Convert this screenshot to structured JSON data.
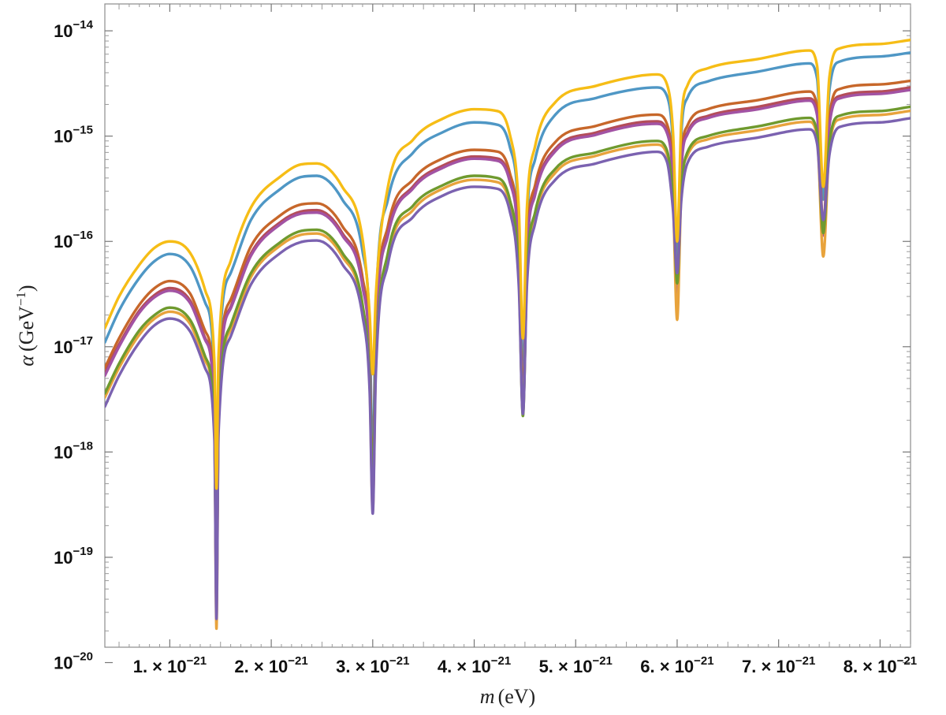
{
  "chart_data": {
    "type": "line",
    "title": "",
    "xlabel": {
      "symbol": "m",
      "unit": "(eV)"
    },
    "ylabel": {
      "symbol": "α",
      "unit_prefix": "(GeV",
      "unit_exp": "−1",
      "unit_suffix": ")"
    },
    "x_scale": "linear",
    "y_scale": "log",
    "xlim": [
      3.6e-22,
      8.3e-21
    ],
    "ylim": [
      1.4e-20,
      1.8e-14
    ],
    "grid": false,
    "legend": "none",
    "x_ticks": [
      {
        "value": 1e-21,
        "mant": "1.",
        "exp": "−21"
      },
      {
        "value": 2e-21,
        "mant": "2.",
        "exp": "−21"
      },
      {
        "value": 3e-21,
        "mant": "3.",
        "exp": "−21"
      },
      {
        "value": 4e-21,
        "mant": "4.",
        "exp": "−21"
      },
      {
        "value": 5e-21,
        "mant": "5.",
        "exp": "−21"
      },
      {
        "value": 6e-21,
        "mant": "6.",
        "exp": "−21"
      },
      {
        "value": 7e-21,
        "mant": "7.",
        "exp": "−21"
      },
      {
        "value": 8e-21,
        "mant": "8.",
        "exp": "−21"
      }
    ],
    "y_ticks": [
      {
        "value": 1e-14,
        "exp": "−14"
      },
      {
        "value": 1e-15,
        "exp": "−15"
      },
      {
        "value": 1e-16,
        "exp": "−16"
      },
      {
        "value": 1e-17,
        "exp": "−17"
      },
      {
        "value": 1e-18,
        "exp": "−18"
      },
      {
        "value": 1e-19,
        "exp": "−19"
      },
      {
        "value": 1e-20,
        "exp": "−20"
      }
    ],
    "series": [
      {
        "color": "#4f97c5",
        "x": [
          3.6e-22,
          5e-22,
          7e-22,
          8.5e-22,
          1e-21,
          1.2e-21,
          1.35e-21,
          1.44e-21,
          1.46e-21,
          1.48e-21,
          1.6e-21,
          1.8e-21,
          2.1e-21,
          2.3e-21,
          2.45e-21,
          2.7e-21,
          2.9e-21,
          2.97e-21,
          3e-21,
          3.03e-21,
          3.15e-21,
          3.4e-21,
          3.7e-21,
          4e-21,
          4.2e-21,
          4.35e-21,
          4.44e-21,
          4.48e-21,
          4.52e-21,
          4.6e-21,
          4.8e-21,
          5.2e-21,
          5.6e-21,
          5.8e-21,
          5.9e-21,
          5.96e-21,
          6e-21,
          6.04e-21,
          6.1e-21,
          6.3e-21,
          6.8e-21,
          7.3e-21,
          7.38e-21,
          7.44e-21,
          7.5e-21,
          7.6e-21,
          8e-21,
          8.3e-21
        ],
        "y": [
          1.1e-17,
          2.2e-17,
          4.5e-17,
          6.5e-17,
          7.6e-17,
          5.8e-17,
          2.6e-17,
          5e-18,
          8e-20,
          6e-18,
          5e-17,
          1.6e-16,
          3.2e-16,
          4.1e-16,
          4.2e-16,
          2.5e-16,
          8e-17,
          1.5e-17,
          7e-19,
          2.2e-17,
          2.5e-16,
          7e-16,
          1.1e-15,
          1.35e-15,
          1.3e-15,
          8e-16,
          1.5e-16,
          5e-18,
          1.6e-16,
          6e-16,
          1.6e-15,
          2.3e-15,
          2.8e-15,
          2.9e-15,
          2.4e-15,
          8e-16,
          6e-17,
          1e-15,
          2.3e-15,
          3.3e-15,
          4.1e-15,
          4.9e-15,
          3.5e-15,
          2.5e-16,
          2.7e-15,
          5.1e-15,
          5.7e-15,
          6.2e-15
        ]
      },
      {
        "color": "#c7672a",
        "x": [
          3.6e-22,
          5e-22,
          7e-22,
          8.5e-22,
          1e-21,
          1.2e-21,
          1.35e-21,
          1.44e-21,
          1.46e-21,
          1.48e-21,
          1.6e-21,
          1.8e-21,
          2.1e-21,
          2.3e-21,
          2.45e-21,
          2.7e-21,
          2.9e-21,
          2.97e-21,
          3e-21,
          3.03e-21,
          3.15e-21,
          3.4e-21,
          3.7e-21,
          4e-21,
          4.2e-21,
          4.35e-21,
          4.44e-21,
          4.48e-21,
          4.52e-21,
          4.6e-21,
          4.8e-21,
          5.2e-21,
          5.6e-21,
          5.8e-21,
          5.9e-21,
          5.96e-21,
          6e-21,
          6.04e-21,
          6.1e-21,
          6.3e-21,
          6.8e-21,
          7.3e-21,
          7.38e-21,
          7.44e-21,
          7.5e-21,
          7.6e-21,
          8e-21,
          8.3e-21
        ],
        "y": [
          6.3e-18,
          1.2e-17,
          2.5e-17,
          3.6e-17,
          4.2e-17,
          3.2e-17,
          1.4e-17,
          3e-18,
          4e-20,
          3.4e-18,
          2.8e-17,
          9e-17,
          1.8e-16,
          2.25e-16,
          2.3e-16,
          1.4e-16,
          4.5e-17,
          8.5e-18,
          4e-19,
          1.2e-17,
          1.4e-16,
          3.9e-16,
          6.2e-16,
          7.4e-16,
          7.2e-16,
          4.5e-16,
          8.5e-17,
          3e-18,
          9e-17,
          3.4e-16,
          8.8e-16,
          1.25e-15,
          1.55e-15,
          1.6e-15,
          1.3e-15,
          4.5e-16,
          3.5e-17,
          5.5e-16,
          1.25e-15,
          1.8e-15,
          2.2e-15,
          2.65e-15,
          1.9e-15,
          1.4e-16,
          1.5e-15,
          2.8e-15,
          3.1e-15,
          3.35e-15
        ]
      },
      {
        "color": "#b44d59",
        "x": [
          3.6e-22,
          5e-22,
          7e-22,
          8.5e-22,
          1e-21,
          1.2e-21,
          1.35e-21,
          1.44e-21,
          1.46e-21,
          1.48e-21,
          1.6e-21,
          1.8e-21,
          2.1e-21,
          2.3e-21,
          2.45e-21,
          2.7e-21,
          2.9e-21,
          2.97e-21,
          3e-21,
          3.03e-21,
          3.15e-21,
          3.4e-21,
          3.7e-21,
          4e-21,
          4.2e-21,
          4.35e-21,
          4.44e-21,
          4.48e-21,
          4.52e-21,
          4.6e-21,
          4.8e-21,
          5.2e-21,
          5.6e-21,
          5.8e-21,
          5.9e-21,
          5.96e-21,
          6e-21,
          6.04e-21,
          6.1e-21,
          6.3e-21,
          6.8e-21,
          7.3e-21,
          7.38e-21,
          7.44e-21,
          7.5e-21,
          7.6e-21,
          8e-21,
          8.3e-21
        ],
        "y": [
          5.6e-18,
          1.05e-17,
          2.2e-17,
          3.1e-17,
          3.6e-17,
          2.75e-17,
          1.2e-17,
          2.6e-18,
          3.5e-20,
          2.9e-18,
          2.4e-17,
          7.7e-17,
          1.55e-16,
          1.93e-16,
          1.98e-16,
          1.2e-16,
          3.9e-17,
          7.3e-18,
          3.4e-19,
          1.05e-17,
          1.2e-16,
          3.35e-16,
          5.3e-16,
          6.4e-16,
          6.2e-16,
          3.9e-16,
          7.3e-17,
          2.6e-18,
          7.7e-17,
          2.9e-16,
          7.6e-16,
          1.08e-15,
          1.34e-15,
          1.38e-15,
          1.12e-15,
          3.9e-16,
          3e-17,
          4.7e-16,
          1.08e-15,
          1.55e-15,
          1.9e-15,
          2.28e-15,
          1.64e-15,
          1.2e-16,
          1.3e-15,
          2.4e-15,
          2.65e-15,
          2.9e-15
        ]
      },
      {
        "color": "#a253a4",
        "x": [
          3.6e-22,
          5e-22,
          7e-22,
          8.5e-22,
          1e-21,
          1.2e-21,
          1.35e-21,
          1.44e-21,
          1.46e-21,
          1.48e-21,
          1.6e-21,
          1.8e-21,
          2.1e-21,
          2.3e-21,
          2.45e-21,
          2.7e-21,
          2.9e-21,
          2.97e-21,
          3e-21,
          3.03e-21,
          3.15e-21,
          3.4e-21,
          3.7e-21,
          4e-21,
          4.2e-21,
          4.35e-21,
          4.44e-21,
          4.48e-21,
          4.52e-21,
          4.6e-21,
          4.8e-21,
          5.2e-21,
          5.6e-21,
          5.8e-21,
          5.9e-21,
          5.96e-21,
          6e-21,
          6.04e-21,
          6.1e-21,
          6.3e-21,
          6.8e-21,
          7.3e-21,
          7.38e-21,
          7.44e-21,
          7.5e-21,
          7.6e-21,
          8e-21,
          8.3e-21
        ],
        "y": [
          5.3e-18,
          1e-17,
          2.1e-17,
          2.95e-17,
          3.4e-17,
          2.6e-17,
          1.15e-17,
          2.5e-18,
          3.3e-20,
          2.8e-18,
          2.3e-17,
          7.3e-17,
          1.48e-16,
          1.84e-16,
          1.88e-16,
          1.14e-16,
          3.7e-17,
          7e-18,
          3.2e-19,
          1e-17,
          1.14e-16,
          3.2e-16,
          5.05e-16,
          6.1e-16,
          5.9e-16,
          3.7e-16,
          7e-17,
          2.5e-18,
          7.3e-17,
          2.75e-16,
          7.2e-16,
          1.03e-15,
          1.27e-15,
          1.31e-15,
          1.07e-15,
          3.7e-16,
          2.8e-17,
          4.5e-16,
          1.03e-15,
          1.48e-15,
          1.8e-15,
          2.17e-15,
          1.56e-15,
          1.14e-16,
          1.24e-15,
          2.28e-15,
          2.52e-15,
          2.75e-15
        ]
      },
      {
        "color": "#e8a33c",
        "x": [
          3.6e-22,
          5e-22,
          7e-22,
          8.5e-22,
          1e-21,
          1.2e-21,
          1.35e-21,
          1.44e-21,
          1.46e-21,
          1.48e-21,
          1.6e-21,
          1.8e-21,
          2.1e-21,
          2.3e-21,
          2.45e-21,
          2.7e-21,
          2.9e-21,
          2.97e-21,
          3e-21,
          3.03e-21,
          3.15e-21,
          3.4e-21,
          3.7e-21,
          4e-21,
          4.2e-21,
          4.35e-21,
          4.44e-21,
          4.48e-21,
          4.52e-21,
          4.6e-21,
          4.8e-21,
          5.2e-21,
          5.6e-21,
          5.8e-21,
          5.9e-21,
          5.96e-21,
          6e-21,
          6.04e-21,
          6.1e-21,
          6.3e-21,
          6.8e-21,
          7.3e-21,
          7.38e-21,
          7.44e-21,
          7.5e-21,
          7.6e-21,
          8e-21,
          8.3e-21
        ],
        "y": [
          3.3e-18,
          6.3e-18,
          1.3e-17,
          1.85e-17,
          2.15e-17,
          1.65e-17,
          7.3e-18,
          1.6e-18,
          2.1e-20,
          1.75e-18,
          1.45e-17,
          4.6e-17,
          9.3e-17,
          1.16e-16,
          1.19e-16,
          7.2e-17,
          2.3e-17,
          4.4e-18,
          2.8e-19,
          6.3e-18,
          7.2e-17,
          2e-16,
          3.2e-16,
          3.85e-16,
          3.7e-16,
          2.3e-16,
          4.4e-17,
          2.4e-18,
          4.6e-17,
          1.73e-16,
          4.5e-16,
          6.5e-16,
          8e-16,
          8.3e-16,
          6.7e-16,
          2.3e-16,
          1.8e-17,
          2.8e-16,
          6.5e-16,
          9.3e-16,
          1.14e-15,
          1.37e-15,
          9.8e-16,
          7.2e-17,
          7.8e-16,
          1.44e-15,
          1.59e-15,
          1.74e-15
        ]
      },
      {
        "color": "#6f9a2e",
        "x": [
          3.6e-22,
          5e-22,
          7e-22,
          8.5e-22,
          1e-21,
          1.2e-21,
          1.35e-21,
          1.44e-21,
          1.46e-21,
          1.48e-21,
          1.6e-21,
          1.8e-21,
          2.1e-21,
          2.3e-21,
          2.45e-21,
          2.7e-21,
          2.9e-21,
          2.97e-21,
          3e-21,
          3.03e-21,
          3.15e-21,
          3.4e-21,
          3.7e-21,
          4e-21,
          4.2e-21,
          4.35e-21,
          4.44e-21,
          4.48e-21,
          4.52e-21,
          4.6e-21,
          4.8e-21,
          5.2e-21,
          5.6e-21,
          5.8e-21,
          5.9e-21,
          5.96e-21,
          6e-21,
          6.04e-21,
          6.1e-21,
          6.3e-21,
          6.8e-21,
          7.3e-21,
          7.38e-21,
          7.44e-21,
          7.5e-21,
          7.6e-21,
          8e-21,
          8.3e-21
        ],
        "y": [
          3.6e-18,
          6.9e-18,
          1.43e-17,
          2e-17,
          2.35e-17,
          1.8e-17,
          8e-18,
          1.7e-18,
          4.5e-20,
          1.9e-18,
          1.6e-17,
          5e-17,
          1e-16,
          1.26e-16,
          1.29e-16,
          7.8e-17,
          2.5e-17,
          4.8e-18,
          5e-19,
          6.9e-18,
          7.8e-17,
          2.2e-16,
          3.45e-16,
          4.2e-16,
          4.05e-16,
          2.5e-16,
          4.8e-17,
          2.2e-18,
          5e-17,
          1.88e-16,
          4.9e-16,
          7e-16,
          8.7e-16,
          9e-16,
          7.3e-16,
          2.5e-16,
          4e-17,
          3e-16,
          7e-16,
          1e-15,
          1.24e-15,
          1.49e-15,
          1.07e-15,
          1.2e-16,
          8.5e-16,
          1.56e-15,
          1.73e-15,
          1.9e-15
        ]
      },
      {
        "color": "#7b62b0",
        "x": [
          3.6e-22,
          5e-22,
          7e-22,
          8.5e-22,
          1e-21,
          1.2e-21,
          1.35e-21,
          1.44e-21,
          1.46e-21,
          1.48e-21,
          1.6e-21,
          1.8e-21,
          2.1e-21,
          2.3e-21,
          2.45e-21,
          2.7e-21,
          2.9e-21,
          2.97e-21,
          3e-21,
          3.03e-21,
          3.15e-21,
          3.4e-21,
          3.7e-21,
          4e-21,
          4.2e-21,
          4.35e-21,
          4.44e-21,
          4.48e-21,
          4.52e-21,
          4.6e-21,
          4.8e-21,
          5.2e-21,
          5.6e-21,
          5.8e-21,
          5.9e-21,
          5.96e-21,
          6e-21,
          6.04e-21,
          6.1e-21,
          6.3e-21,
          6.8e-21,
          7.3e-21,
          7.38e-21,
          7.44e-21,
          7.5e-21,
          7.6e-21,
          8e-21,
          8.3e-21
        ],
        "y": [
          2.7e-18,
          5.3e-18,
          1.1e-17,
          1.6e-17,
          1.85e-17,
          1.4e-17,
          6.2e-18,
          1.3e-18,
          2.6e-20,
          1.5e-18,
          1.25e-17,
          3.9e-17,
          7.9e-17,
          9.9e-17,
          1.02e-16,
          6.1e-17,
          1.95e-17,
          3.7e-18,
          2.6e-19,
          5.3e-18,
          6.1e-17,
          1.72e-16,
          2.75e-16,
          3.3e-16,
          3.2e-16,
          1.95e-16,
          3.7e-17,
          2.3e-18,
          3.9e-17,
          1.48e-16,
          3.85e-16,
          5.5e-16,
          6.8e-16,
          7.1e-16,
          5.7e-16,
          1.95e-16,
          5e-17,
          2.4e-16,
          5.5e-16,
          7.9e-16,
          9.7e-16,
          1.16e-15,
          8.4e-16,
          1.6e-16,
          6.6e-16,
          1.22e-15,
          1.35e-15,
          1.48e-15
        ]
      },
      {
        "color": "#f6bd16",
        "x": [
          3.6e-22,
          5e-22,
          7e-22,
          8.5e-22,
          1e-21,
          1.2e-21,
          1.35e-21,
          1.44e-21,
          1.46e-21,
          1.48e-21,
          1.6e-21,
          1.8e-21,
          2.1e-21,
          2.3e-21,
          2.45e-21,
          2.7e-21,
          2.9e-21,
          2.97e-21,
          3e-21,
          3.03e-21,
          3.15e-21,
          3.4e-21,
          3.7e-21,
          4e-21,
          4.2e-21,
          4.35e-21,
          4.44e-21,
          4.48e-21,
          4.52e-21,
          4.6e-21,
          4.8e-21,
          5.2e-21,
          5.6e-21,
          5.8e-21,
          5.9e-21,
          5.96e-21,
          6e-21,
          6.04e-21,
          6.1e-21,
          6.3e-21,
          6.8e-21,
          7.3e-21,
          7.38e-21,
          7.44e-21,
          7.5e-21,
          7.6e-21,
          8e-21,
          8.3e-21
        ],
        "y": [
          1.5e-17,
          3e-17,
          6e-17,
          8.7e-17,
          1e-16,
          7.8e-17,
          3.4e-17,
          7e-18,
          4.5e-19,
          8e-18,
          6.5e-17,
          2.1e-16,
          4.2e-16,
          5.4e-16,
          5.5e-16,
          3.3e-16,
          1.05e-16,
          2e-17,
          5.5e-18,
          3e-17,
          3.3e-16,
          9.3e-16,
          1.48e-15,
          1.8e-15,
          1.75e-15,
          1.05e-15,
          2e-16,
          1.2e-17,
          2.1e-16,
          8e-16,
          2.1e-15,
          3e-15,
          3.7e-15,
          3.85e-15,
          3.1e-15,
          1.05e-15,
          1e-16,
          1.3e-15,
          3e-15,
          4.4e-15,
          5.4e-15,
          6.5e-15,
          4.6e-15,
          3.3e-16,
          3.6e-15,
          6.8e-15,
          7.5e-15,
          8.2e-15
        ]
      }
    ]
  }
}
